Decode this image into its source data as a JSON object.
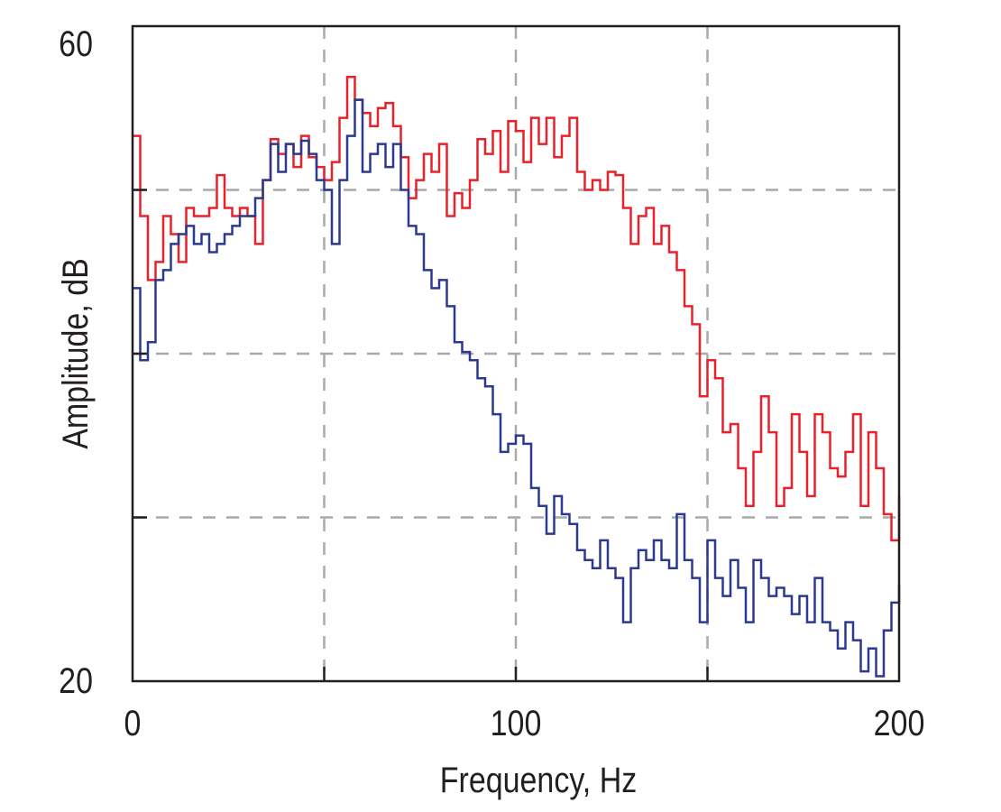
{
  "chart_data": {
    "type": "line",
    "step": true,
    "title": "",
    "xlabel": "Frequency, Hz",
    "ylabel": "Amplitude, dB",
    "xlim": [
      0,
      200
    ],
    "ylim": [
      20,
      60
    ],
    "x_tick_labels": [
      "0",
      "100",
      "200"
    ],
    "y_tick_labels": [
      "20",
      "60"
    ],
    "x_gridlines": [
      50,
      100,
      150
    ],
    "y_gridlines": [
      30,
      40,
      50
    ],
    "grid": true,
    "grid_style": "dashed",
    "x": [
      0,
      2,
      4,
      6,
      8,
      10,
      12,
      14,
      16,
      18,
      20,
      22,
      24,
      26,
      28,
      30,
      32,
      34,
      36,
      38,
      40,
      42,
      44,
      46,
      48,
      50,
      52,
      54,
      56,
      58,
      60,
      62,
      64,
      66,
      68,
      70,
      72,
      74,
      76,
      78,
      80,
      82,
      84,
      86,
      88,
      90,
      92,
      94,
      96,
      98,
      100,
      102,
      104,
      106,
      108,
      110,
      112,
      114,
      116,
      118,
      120,
      122,
      124,
      126,
      128,
      130,
      132,
      134,
      136,
      138,
      140,
      142,
      144,
      146,
      148,
      150,
      152,
      154,
      156,
      158,
      160,
      162,
      164,
      166,
      168,
      170,
      172,
      174,
      176,
      178,
      180,
      182,
      184,
      186,
      188,
      190,
      192,
      194,
      196,
      198,
      200
    ],
    "series": [
      {
        "color": "#e8212b",
        "values": [
          53.3,
          48.4,
          44.5,
          45.6,
          48.4,
          47.3,
          45.6,
          48.9,
          48.4,
          48.4,
          48.9,
          50.9,
          48.9,
          48.4,
          48.9,
          48.4,
          46.7,
          50.6,
          53.1,
          52.2,
          52.8,
          51.4,
          53.3,
          52.0,
          51.4,
          50.6,
          51.7,
          54.4,
          56.9,
          55.5,
          54.7,
          53.9,
          55.0,
          55.3,
          53.9,
          52.0,
          49.5,
          50.6,
          52.2,
          51.1,
          52.8,
          48.4,
          49.8,
          48.9,
          50.6,
          53.1,
          52.2,
          53.6,
          51.1,
          54.2,
          53.6,
          51.7,
          54.4,
          52.8,
          54.4,
          52.0,
          53.3,
          54.4,
          51.1,
          50.0,
          50.6,
          50.0,
          51.1,
          50.9,
          48.9,
          46.7,
          48.4,
          48.9,
          46.7,
          47.8,
          46.2,
          45.1,
          42.9,
          41.8,
          37.4,
          39.6,
          38.5,
          35.2,
          35.7,
          33.0,
          30.7,
          34.0,
          37.4,
          35.2,
          30.7,
          31.8,
          36.3,
          34.0,
          31.3,
          36.3,
          35.2,
          33.0,
          32.5,
          34.0,
          36.3,
          30.7,
          35.2,
          33.0,
          30.2,
          28.6,
          31.3
        ]
      },
      {
        "color": "#2b3990",
        "values": [
          44.0,
          39.6,
          40.7,
          44.5,
          45.1,
          46.7,
          47.3,
          47.8,
          46.7,
          47.3,
          46.2,
          46.7,
          47.3,
          47.8,
          48.4,
          48.4,
          49.5,
          50.6,
          52.8,
          51.1,
          52.8,
          52.2,
          53.0,
          52.2,
          50.6,
          50.0,
          46.7,
          50.6,
          53.3,
          55.5,
          51.1,
          52.2,
          52.8,
          51.4,
          52.8,
          50.0,
          47.8,
          47.3,
          45.1,
          44.0,
          44.5,
          42.9,
          40.7,
          40.1,
          39.6,
          38.5,
          38.0,
          36.3,
          34.0,
          34.5,
          35.0,
          34.5,
          31.8,
          30.7,
          29.0,
          31.3,
          30.2,
          29.6,
          28.0,
          27.4,
          26.9,
          28.6,
          26.9,
          26.3,
          23.6,
          26.9,
          28.0,
          27.4,
          28.6,
          27.4,
          26.9,
          30.2,
          27.4,
          26.3,
          23.6,
          28.6,
          26.3,
          25.2,
          27.4,
          25.7,
          23.6,
          27.4,
          26.3,
          25.2,
          25.7,
          25.2,
          24.1,
          25.2,
          23.6,
          26.3,
          23.6,
          23.1,
          22.0,
          23.6,
          22.5,
          20.6,
          22.0,
          20.3,
          23.1,
          24.8,
          25.9
        ]
      }
    ]
  }
}
